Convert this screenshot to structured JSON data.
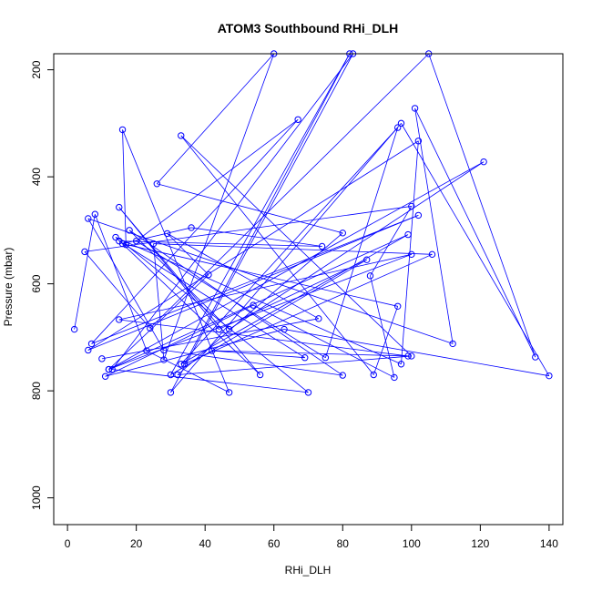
{
  "chart_data": {
    "type": "line",
    "title": "ATOM3 Southbound RHi_DLH",
    "xlabel": "RHi_DLH",
    "ylabel": "Pressure (mbar)",
    "xlim": [
      -4,
      144
    ],
    "ylim": [
      1050,
      170
    ],
    "y_reversed": true,
    "grid": false,
    "x_ticks": [
      0,
      20,
      40,
      60,
      80,
      100,
      120,
      140
    ],
    "y_ticks": [
      200,
      400,
      600,
      800,
      1000
    ],
    "series_color": "#0000ff",
    "points": [
      {
        "x": 2,
        "y": 685
      },
      {
        "x": 8,
        "y": 470
      },
      {
        "x": 23,
        "y": 725
      },
      {
        "x": 47,
        "y": 803
      },
      {
        "x": 16,
        "y": 312
      },
      {
        "x": 17,
        "y": 527
      },
      {
        "x": 70,
        "y": 803
      },
      {
        "x": 13,
        "y": 760
      },
      {
        "x": 83,
        "y": 170
      },
      {
        "x": 30,
        "y": 803
      },
      {
        "x": 97,
        "y": 300
      },
      {
        "x": 140,
        "y": 772
      },
      {
        "x": 63,
        "y": 685
      },
      {
        "x": 11,
        "y": 773
      },
      {
        "x": 54,
        "y": 640
      },
      {
        "x": 95,
        "y": 775
      },
      {
        "x": 88,
        "y": 585
      },
      {
        "x": 100,
        "y": 455
      },
      {
        "x": 5,
        "y": 540
      },
      {
        "x": 24,
        "y": 683
      },
      {
        "x": 105,
        "y": 170
      },
      {
        "x": 136,
        "y": 737
      },
      {
        "x": 101,
        "y": 272
      },
      {
        "x": 112,
        "y": 712
      },
      {
        "x": 6,
        "y": 478
      },
      {
        "x": 28,
        "y": 724
      },
      {
        "x": 80,
        "y": 771
      },
      {
        "x": 18,
        "y": 500
      },
      {
        "x": 47,
        "y": 685
      },
      {
        "x": 121,
        "y": 372
      },
      {
        "x": 12,
        "y": 760
      },
      {
        "x": 99,
        "y": 508
      },
      {
        "x": 33,
        "y": 750
      },
      {
        "x": 96,
        "y": 308
      },
      {
        "x": 75,
        "y": 738
      },
      {
        "x": 20,
        "y": 520
      },
      {
        "x": 67,
        "y": 293
      },
      {
        "x": 7,
        "y": 712
      },
      {
        "x": 102,
        "y": 472
      },
      {
        "x": 6,
        "y": 724
      },
      {
        "x": 102,
        "y": 333
      },
      {
        "x": 97,
        "y": 750
      },
      {
        "x": 14,
        "y": 513
      },
      {
        "x": 56,
        "y": 770
      },
      {
        "x": 15,
        "y": 457
      },
      {
        "x": 44,
        "y": 685
      },
      {
        "x": 87,
        "y": 555
      },
      {
        "x": 30,
        "y": 770
      },
      {
        "x": 82,
        "y": 170
      },
      {
        "x": 34,
        "y": 750
      },
      {
        "x": 106,
        "y": 545
      },
      {
        "x": 25,
        "y": 525
      },
      {
        "x": 28,
        "y": 742
      },
      {
        "x": 60,
        "y": 170
      },
      {
        "x": 26,
        "y": 413
      },
      {
        "x": 80,
        "y": 505
      },
      {
        "x": 32,
        "y": 770
      },
      {
        "x": 100,
        "y": 735
      },
      {
        "x": 33,
        "y": 323
      },
      {
        "x": 89,
        "y": 770
      },
      {
        "x": 96,
        "y": 642
      },
      {
        "x": 16,
        "y": 525
      },
      {
        "x": 36,
        "y": 495
      },
      {
        "x": 74,
        "y": 530
      },
      {
        "x": 15,
        "y": 520
      },
      {
        "x": 69,
        "y": 738
      },
      {
        "x": 42,
        "y": 725
      },
      {
        "x": 99,
        "y": 735
      },
      {
        "x": 15,
        "y": 667
      },
      {
        "x": 100,
        "y": 545
      },
      {
        "x": 12,
        "y": 760
      },
      {
        "x": 41,
        "y": 583
      },
      {
        "x": 29,
        "y": 506
      },
      {
        "x": 73,
        "y": 665
      },
      {
        "x": 10,
        "y": 740
      }
    ]
  }
}
